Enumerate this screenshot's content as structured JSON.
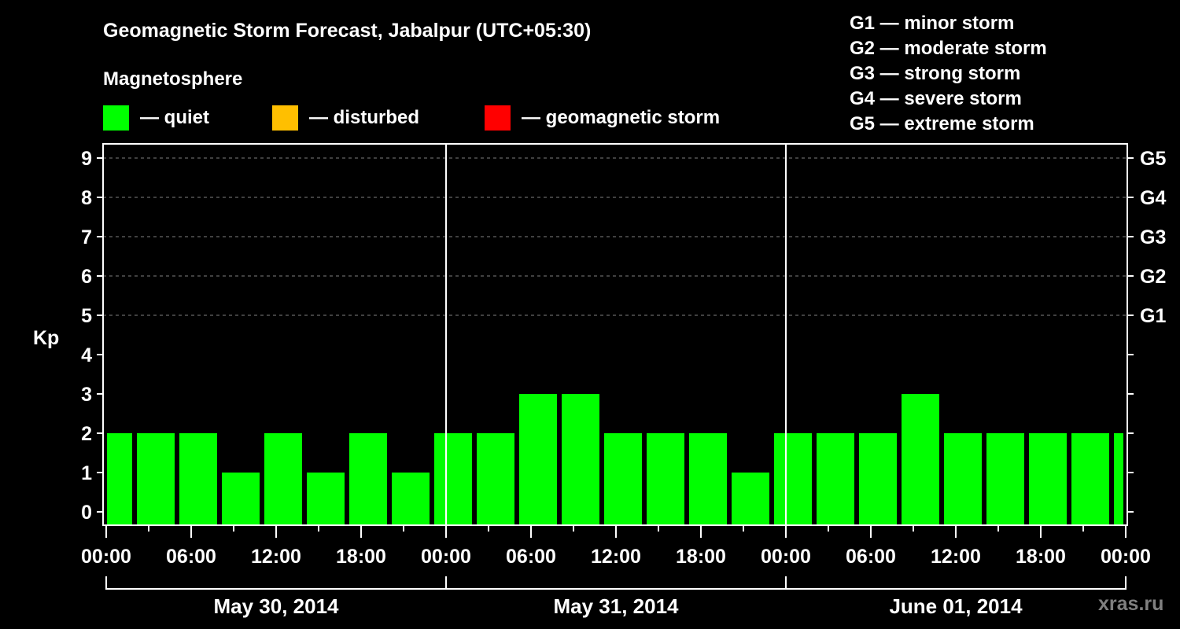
{
  "header": {
    "title": "Geomagnetic Storm Forecast, Jabalpur (UTC+05:30)",
    "subtitle": "Magnetosphere"
  },
  "legend": [
    {
      "label": "— quiet",
      "color": "#00ff00"
    },
    {
      "label": "— disturbed",
      "color": "#ffbf00"
    },
    {
      "label": "— geomagnetic storm",
      "color": "#ff0000"
    }
  ],
  "g_scale": [
    {
      "label": "G1 — minor storm"
    },
    {
      "label": "G2 — moderate storm"
    },
    {
      "label": "G3 — strong storm"
    },
    {
      "label": "G4 — severe storm"
    },
    {
      "label": "G5 — extreme storm"
    }
  ],
  "watermark": "xras.ru",
  "chart_data": {
    "type": "bar",
    "title": "Geomagnetic Storm Forecast, Jabalpur (UTC+05:30)",
    "ylabel": "Kp",
    "xlabel": "",
    "ylim": [
      0,
      9
    ],
    "yticks": [
      0,
      1,
      2,
      3,
      4,
      5,
      6,
      7,
      8,
      9
    ],
    "right_ticks": [
      {
        "kp": 5,
        "label": "G1"
      },
      {
        "kp": 6,
        "label": "G2"
      },
      {
        "kp": 7,
        "label": "G3"
      },
      {
        "kp": 8,
        "label": "G4"
      },
      {
        "kp": 9,
        "label": "G5"
      }
    ],
    "grid": "dashed horizontal at Kp 5-9",
    "x_tick_labels": [
      "00:00",
      "06:00",
      "12:00",
      "18:00",
      "00:00",
      "06:00",
      "12:00",
      "18:00",
      "00:00",
      "06:00",
      "12:00",
      "18:00",
      "00:00"
    ],
    "days": [
      "May 30, 2014",
      "May 31, 2014",
      "June 01, 2014"
    ],
    "interval_hours": 3,
    "values": [
      2,
      2,
      2,
      1,
      2,
      1,
      2,
      1,
      2,
      2,
      3,
      3,
      2,
      2,
      2,
      1,
      2,
      2,
      2,
      3,
      2,
      2,
      2,
      2,
      2
    ],
    "bar_color": "#00ff00",
    "status": "quiet"
  }
}
